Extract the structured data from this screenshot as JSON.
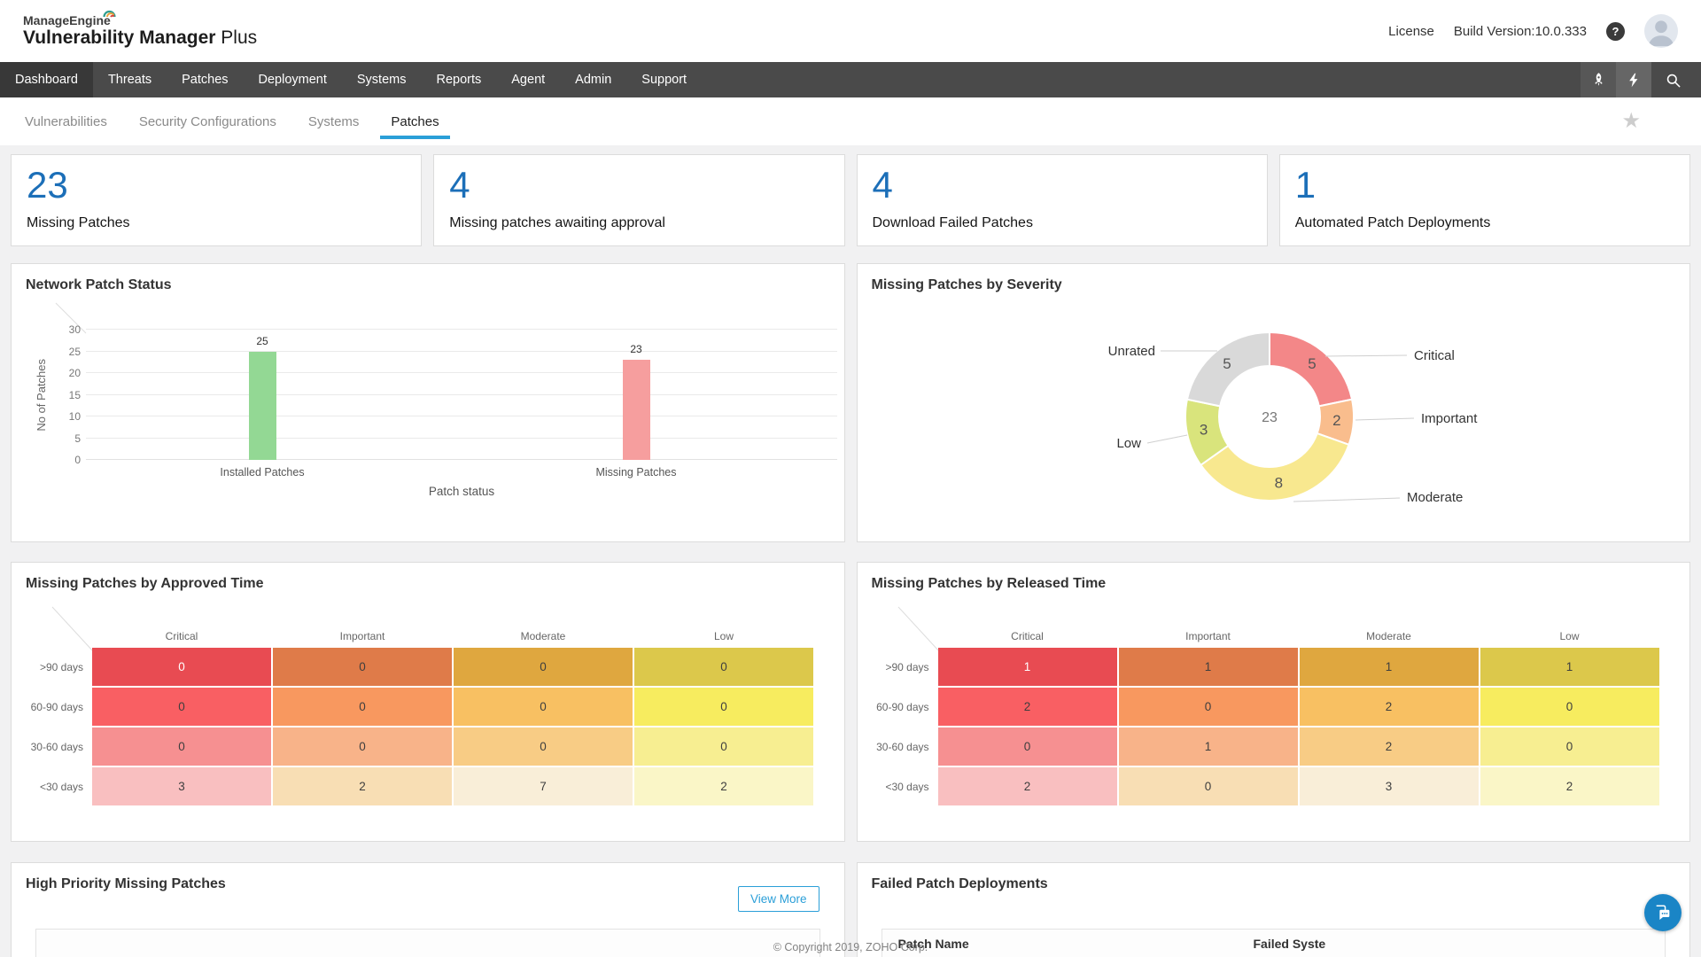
{
  "theme": {
    "accent_blue": "#2b9fd8",
    "number_blue": "#1c6fb8",
    "nav_bg": "#4a4a4a",
    "nav_active_bg": "#383838"
  },
  "header": {
    "brand_top": "ManageEngine",
    "brand_main": "Vulnerability Manager",
    "brand_suffix": " Plus",
    "license": "License",
    "build": "Build Version:10.0.333"
  },
  "nav": {
    "items": [
      {
        "label": "Dashboard",
        "active": true
      },
      {
        "label": "Threats"
      },
      {
        "label": "Patches"
      },
      {
        "label": "Deployment"
      },
      {
        "label": "Systems"
      },
      {
        "label": "Reports"
      },
      {
        "label": "Agent"
      },
      {
        "label": "Admin"
      },
      {
        "label": "Support"
      }
    ],
    "icons": [
      "rocket-icon",
      "lightning-icon",
      "search-icon"
    ]
  },
  "subnav": {
    "items": [
      {
        "label": "Vulnerabilities"
      },
      {
        "label": "Security Configurations"
      },
      {
        "label": "Systems"
      },
      {
        "label": "Patches",
        "active": true
      }
    ],
    "icons": [
      "star-icon"
    ]
  },
  "stat_cards": [
    {
      "value": "23",
      "label": "Missing Patches"
    },
    {
      "value": "4",
      "label": "Missing patches awaiting approval"
    },
    {
      "value": "4",
      "label": "Download Failed Patches"
    },
    {
      "value": "1",
      "label": "Automated Patch Deployments"
    }
  ],
  "chart_data": [
    {
      "type": "bar",
      "title": "Network Patch Status",
      "categories": [
        "Installed Patches",
        "Missing Patches"
      ],
      "values": [
        25,
        23
      ],
      "bar_colors": [
        "#93d894",
        "#f69e9e"
      ],
      "xlabel": "Patch status",
      "ylabel": "No of Patches",
      "ylim": [
        0,
        30
      ],
      "yticks": [
        0,
        5,
        10,
        15,
        20,
        25,
        30
      ],
      "grid": true
    },
    {
      "type": "donut",
      "title": "Missing Patches by Severity",
      "center_total": 23,
      "segments": [
        {
          "label": "Critical",
          "value": 5,
          "color": "#f38788"
        },
        {
          "label": "Important",
          "value": 2,
          "color": "#f9bd8d"
        },
        {
          "label": "Moderate",
          "value": 8,
          "color": "#f8e88f"
        },
        {
          "label": "Low",
          "value": 3,
          "color": "#d9e47c"
        },
        {
          "label": "Unrated",
          "value": 5,
          "color": "#d9d9d9"
        }
      ]
    },
    {
      "type": "heatmap",
      "title": "Missing Patches by Approved Time",
      "columns": [
        "Critical",
        "Important",
        "Moderate",
        "Low"
      ],
      "rows": [
        ">90 days",
        "60-90 days",
        "30-60 days",
        "<30 days"
      ],
      "values": [
        [
          0,
          0,
          0,
          0
        ],
        [
          0,
          0,
          0,
          0
        ],
        [
          0,
          0,
          0,
          0
        ],
        [
          3,
          2,
          7,
          2
        ]
      ],
      "row_colors": [
        [
          "#e84b52",
          "#df7b49",
          "#dfa73f",
          "#dcc84b"
        ],
        [
          "#f95f63",
          "#f8985f",
          "#f8c062",
          "#f7ec5f"
        ],
        [
          "#f69091",
          "#f8b389",
          "#f8cc85",
          "#f7ee91"
        ],
        [
          "#f9bfc0",
          "#f8deb4",
          "#f9eed8",
          "#faf6c7"
        ]
      ]
    },
    {
      "type": "heatmap",
      "title": "Missing Patches by Released Time",
      "columns": [
        "Critical",
        "Important",
        "Moderate",
        "Low"
      ],
      "rows": [
        ">90 days",
        "60-90 days",
        "30-60 days",
        "<30 days"
      ],
      "values": [
        [
          1,
          1,
          1,
          1
        ],
        [
          2,
          0,
          2,
          0
        ],
        [
          0,
          1,
          2,
          0
        ],
        [
          2,
          0,
          3,
          2
        ]
      ],
      "row_colors": [
        [
          "#e84b52",
          "#df7b49",
          "#dfa73f",
          "#dcc84b"
        ],
        [
          "#f95f63",
          "#f8985f",
          "#f8c062",
          "#f7ec5f"
        ],
        [
          "#f69091",
          "#f8b389",
          "#f8cc85",
          "#f7ee91"
        ],
        [
          "#f9bfc0",
          "#f8deb4",
          "#f9eed8",
          "#faf6c7"
        ]
      ]
    }
  ],
  "bottom_panels": {
    "left": {
      "title": "High Priority Missing Patches",
      "button": "View More"
    },
    "right": {
      "title": "Failed Patch Deployments",
      "col1": "Patch Name",
      "col2": "Failed Syste"
    }
  },
  "footer": {
    "copyright": "© Copyright 2019, ZOHO Corp."
  }
}
